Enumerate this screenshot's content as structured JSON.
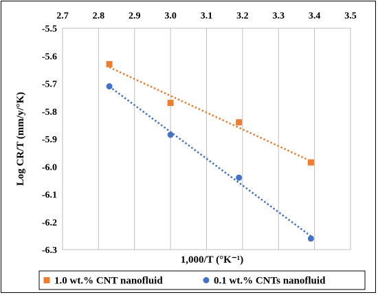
{
  "chart_data": {
    "type": "scatter",
    "title": "",
    "xlabel": "1,000/T (°K⁻¹)",
    "ylabel": "Log CR/T (mm/y/°K)",
    "xlim": [
      2.7,
      3.5
    ],
    "ylim": [
      -6.3,
      -5.5
    ],
    "x_ticks": [
      "2.7",
      "2.8",
      "2.9",
      "3.0",
      "3.1",
      "3.2",
      "3.3",
      "3.4",
      "3.5"
    ],
    "y_ticks": [
      "-5.5",
      "-5.6",
      "-5.7",
      "-5.8",
      "-5.9",
      "-6.0",
      "-6.1",
      "-6.2",
      "-6.3"
    ],
    "x_axis_position": "top",
    "grid": "vertical",
    "legend_position": "bottom",
    "trendlines": "linear, dotted",
    "series": [
      {
        "name": "1.0 wt.% CNT nanofluid",
        "color": "#ED7D31",
        "marker": "square",
        "x": [
          2.83,
          3.0,
          3.19,
          3.39
        ],
        "y": [
          -5.63,
          -5.77,
          -5.84,
          -5.985
        ]
      },
      {
        "name": "0.1 wt.% CNTs nanofluid",
        "color": "#4472C4",
        "marker": "circle",
        "x": [
          2.83,
          3.0,
          3.19,
          3.39
        ],
        "y": [
          -5.71,
          -5.885,
          -6.04,
          -6.26
        ]
      }
    ]
  }
}
